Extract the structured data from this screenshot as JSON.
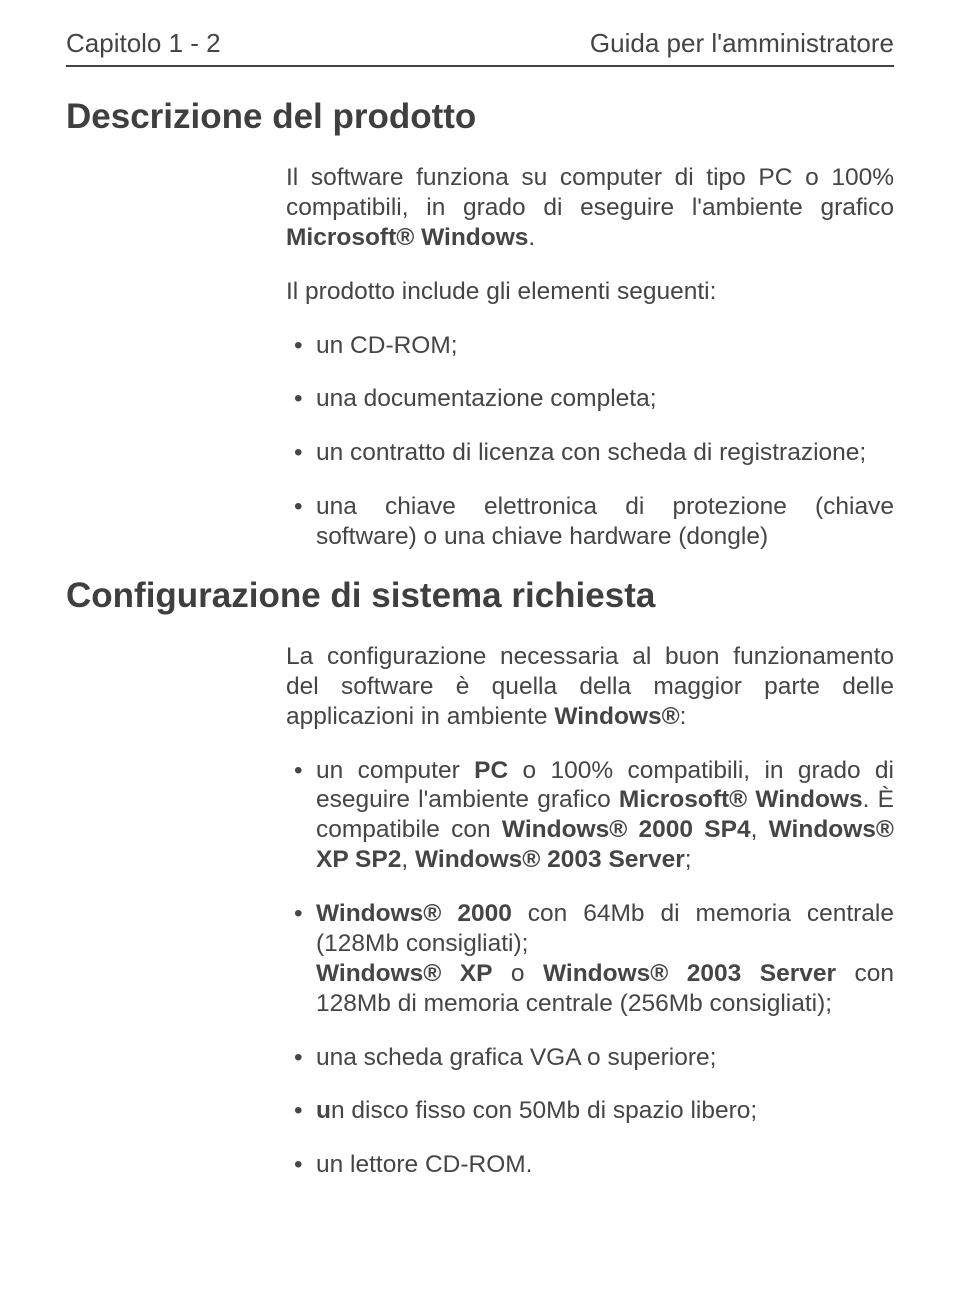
{
  "header": {
    "left": "Capitolo 1 - 2",
    "right": "Guida per l'amministratore"
  },
  "section1": {
    "title": "Descrizione del prodotto",
    "intro_parts": [
      "Il software funziona su computer di tipo PC o 100% compatibili, in grado di eseguire l'ambiente grafico ",
      "Microsoft® Windows",
      "."
    ],
    "includes_intro": "Il prodotto include gli elementi seguenti:",
    "bullets": [
      "un CD-ROM;",
      "una documentazione completa;",
      "un contratto di licenza con scheda di registrazione;",
      "una chiave elettronica di protezione (chiave software) o una chiave hardware (dongle)"
    ]
  },
  "section2": {
    "title": "Configurazione di sistema richiesta",
    "intro_parts": [
      "La configurazione necessaria al buon funzionamento del software è quella della maggior parte delle applicazioni in ambiente ",
      "Windows®",
      ":"
    ],
    "bullet1": {
      "a": "un computer ",
      "b": "PC",
      "c": " o 100% compatibili, in grado di eseguire l'ambiente grafico ",
      "d": "Microsoft® Windows",
      "e": ". È compatibile con ",
      "f": "Windows® 2000 SP4",
      "g": ", ",
      "h": "Windows® XP SP2",
      "i": ", ",
      "j": "Windows® 2003 Server",
      "k": ";"
    },
    "bullet2": {
      "a": "Windows® 2000",
      "b": " con 64Mb di memoria centrale (128Mb consigliati);",
      "c": "Windows®  XP",
      "d": " o ",
      "e": "Windows® 2003 Server",
      "f": " con 128Mb di memoria centrale (256Mb consigliati);"
    },
    "bullet3": "una scheda grafica VGA o superiore;",
    "bullet4_a": "u",
    "bullet4_b": "n disco fisso con 50Mb di spazio libero;",
    "bullet5": "un lettore CD-ROM."
  }
}
